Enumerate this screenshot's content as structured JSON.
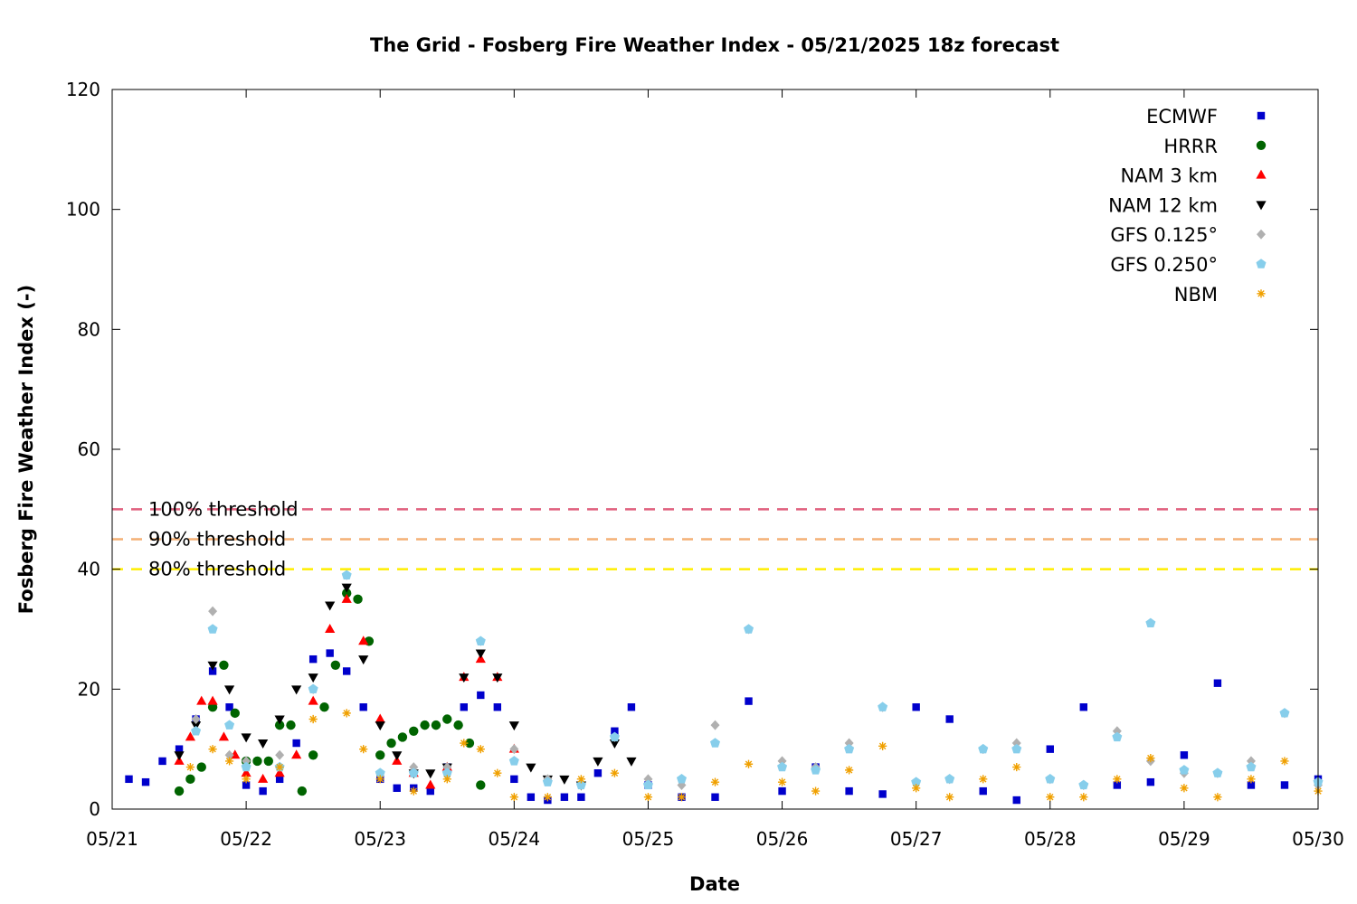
{
  "chart_data": {
    "type": "scatter",
    "title": "The Grid - Fosberg Fire Weather Index - 05/21/2025 18z forecast",
    "xlabel": "Date",
    "ylabel": "Fosberg Fire Weather Index (-)",
    "x_ticks": [
      "05/21",
      "05/22",
      "05/23",
      "05/24",
      "05/25",
      "05/26",
      "05/27",
      "05/28",
      "05/29",
      "05/30"
    ],
    "xlim": [
      "2025-05-21T00:00",
      "2025-05-30T00:00"
    ],
    "ylim": [
      0,
      120
    ],
    "y_ticks": [
      0,
      20,
      40,
      60,
      80,
      100,
      120
    ],
    "grid": false,
    "legend_position": "top-right",
    "thresholds": [
      {
        "label": "100% threshold",
        "value": 50,
        "color": "#e0607e"
      },
      {
        "label": "90% threshold",
        "value": 45,
        "color": "#f4b075"
      },
      {
        "label": "80% threshold",
        "value": 40,
        "color": "#ffee00"
      }
    ],
    "series": [
      {
        "name": "ECMWF",
        "marker": "square",
        "color": "#0000cc",
        "x": [
          "2025-05-21T03:00",
          "2025-05-21T06:00",
          "2025-05-21T09:00",
          "2025-05-21T12:00",
          "2025-05-21T15:00",
          "2025-05-21T18:00",
          "2025-05-21T21:00",
          "2025-05-22T00:00",
          "2025-05-22T03:00",
          "2025-05-22T06:00",
          "2025-05-22T09:00",
          "2025-05-22T12:00",
          "2025-05-22T15:00",
          "2025-05-22T18:00",
          "2025-05-22T21:00",
          "2025-05-23T00:00",
          "2025-05-23T03:00",
          "2025-05-23T06:00",
          "2025-05-23T09:00",
          "2025-05-23T12:00",
          "2025-05-23T15:00",
          "2025-05-23T18:00",
          "2025-05-23T21:00",
          "2025-05-24T00:00",
          "2025-05-24T03:00",
          "2025-05-24T06:00",
          "2025-05-24T09:00",
          "2025-05-24T12:00",
          "2025-05-24T15:00",
          "2025-05-24T18:00",
          "2025-05-24T21:00",
          "2025-05-25T00:00",
          "2025-05-25T06:00",
          "2025-05-25T12:00",
          "2025-05-25T18:00",
          "2025-05-26T00:00",
          "2025-05-26T06:00",
          "2025-05-26T12:00",
          "2025-05-26T18:00",
          "2025-05-27T00:00",
          "2025-05-27T06:00",
          "2025-05-27T12:00",
          "2025-05-27T18:00",
          "2025-05-28T00:00",
          "2025-05-28T06:00",
          "2025-05-28T12:00",
          "2025-05-28T18:00",
          "2025-05-29T00:00",
          "2025-05-29T06:00",
          "2025-05-29T12:00",
          "2025-05-29T18:00",
          "2025-05-30T00:00"
        ],
        "y": [
          5,
          4.5,
          8,
          10,
          15,
          23,
          17,
          4,
          3,
          5,
          11,
          25,
          26,
          23,
          17,
          5,
          3.5,
          3.5,
          3,
          7,
          17,
          19,
          17,
          5,
          2,
          1.5,
          2,
          2,
          6,
          13,
          17,
          4,
          2,
          2,
          18,
          3,
          7,
          3,
          2.5,
          17,
          15,
          3,
          1.5,
          10,
          17,
          4,
          4.5,
          9,
          21,
          4,
          4,
          5
        ]
      },
      {
        "name": "HRRR",
        "marker": "circle",
        "color": "#006400",
        "x": [
          "2025-05-21T12:00",
          "2025-05-21T14:00",
          "2025-05-21T16:00",
          "2025-05-21T18:00",
          "2025-05-21T20:00",
          "2025-05-21T22:00",
          "2025-05-22T00:00",
          "2025-05-22T02:00",
          "2025-05-22T04:00",
          "2025-05-22T06:00",
          "2025-05-22T08:00",
          "2025-05-22T10:00",
          "2025-05-22T12:00",
          "2025-05-22T14:00",
          "2025-05-22T16:00",
          "2025-05-22T18:00",
          "2025-05-22T20:00",
          "2025-05-22T22:00",
          "2025-05-23T00:00",
          "2025-05-23T02:00",
          "2025-05-23T04:00",
          "2025-05-23T06:00",
          "2025-05-23T08:00",
          "2025-05-23T10:00",
          "2025-05-23T12:00",
          "2025-05-23T14:00",
          "2025-05-23T16:00",
          "2025-05-23T18:00"
        ],
        "y": [
          3,
          5,
          7,
          17,
          24,
          16,
          8,
          8,
          8,
          14,
          14,
          3,
          9,
          17,
          24,
          36,
          35,
          28,
          9,
          11,
          12,
          13,
          14,
          14,
          15,
          14,
          11,
          4
        ]
      },
      {
        "name": "NAM 3 km",
        "marker": "triangle-up",
        "color": "#ff0000",
        "x": [
          "2025-05-21T12:00",
          "2025-05-21T14:00",
          "2025-05-21T16:00",
          "2025-05-21T18:00",
          "2025-05-21T20:00",
          "2025-05-21T22:00",
          "2025-05-22T00:00",
          "2025-05-22T03:00",
          "2025-05-22T06:00",
          "2025-05-22T09:00",
          "2025-05-22T12:00",
          "2025-05-22T15:00",
          "2025-05-22T18:00",
          "2025-05-22T21:00",
          "2025-05-23T00:00",
          "2025-05-23T03:00",
          "2025-05-23T06:00",
          "2025-05-23T09:00",
          "2025-05-23T12:00",
          "2025-05-23T15:00",
          "2025-05-23T18:00",
          "2025-05-23T21:00",
          "2025-05-24T00:00"
        ],
        "y": [
          8,
          12,
          18,
          18,
          12,
          9,
          6,
          5,
          6,
          9,
          18,
          30,
          35,
          28,
          15,
          8,
          6,
          4,
          7,
          22,
          25,
          22,
          10
        ]
      },
      {
        "name": "NAM 12 km",
        "marker": "triangle-down",
        "color": "#000000",
        "x": [
          "2025-05-21T12:00",
          "2025-05-21T15:00",
          "2025-05-21T18:00",
          "2025-05-21T21:00",
          "2025-05-22T00:00",
          "2025-05-22T03:00",
          "2025-05-22T06:00",
          "2025-05-22T09:00",
          "2025-05-22T12:00",
          "2025-05-22T15:00",
          "2025-05-22T18:00",
          "2025-05-22T21:00",
          "2025-05-23T00:00",
          "2025-05-23T03:00",
          "2025-05-23T06:00",
          "2025-05-23T09:00",
          "2025-05-23T12:00",
          "2025-05-23T15:00",
          "2025-05-23T18:00",
          "2025-05-23T21:00",
          "2025-05-24T00:00",
          "2025-05-24T03:00",
          "2025-05-24T06:00",
          "2025-05-24T09:00",
          "2025-05-24T12:00",
          "2025-05-24T15:00",
          "2025-05-24T18:00",
          "2025-05-24T21:00"
        ],
        "y": [
          9,
          14,
          24,
          20,
          12,
          11,
          15,
          20,
          22,
          34,
          37,
          25,
          14,
          9,
          6,
          6,
          7,
          22,
          26,
          22,
          14,
          7,
          5,
          5,
          4,
          8,
          11,
          8
        ]
      },
      {
        "name": "GFS 0.125°",
        "marker": "diamond",
        "color": "#b0b0b0",
        "x": [
          "2025-05-21T15:00",
          "2025-05-21T18:00",
          "2025-05-21T21:00",
          "2025-05-22T00:00",
          "2025-05-22T06:00",
          "2025-05-22T12:00",
          "2025-05-22T18:00",
          "2025-05-23T00:00",
          "2025-05-23T06:00",
          "2025-05-23T12:00",
          "2025-05-23T18:00",
          "2025-05-24T00:00",
          "2025-05-24T06:00",
          "2025-05-24T12:00",
          "2025-05-24T18:00",
          "2025-05-25T00:00",
          "2025-05-25T06:00",
          "2025-05-25T12:00",
          "2025-05-25T18:00",
          "2025-05-26T00:00",
          "2025-05-26T06:00",
          "2025-05-26T12:00",
          "2025-05-26T18:00",
          "2025-05-27T00:00",
          "2025-05-27T06:00",
          "2025-05-27T12:00",
          "2025-05-27T18:00",
          "2025-05-28T00:00",
          "2025-05-28T06:00",
          "2025-05-28T12:00",
          "2025-05-28T18:00",
          "2025-05-29T00:00",
          "2025-05-29T06:00",
          "2025-05-29T12:00",
          "2025-05-29T18:00",
          "2025-05-30T00:00"
        ],
        "y": [
          15,
          33,
          9,
          8,
          9,
          20,
          39,
          6,
          7,
          7,
          28,
          10,
          5,
          4,
          12,
          5,
          4,
          14,
          30,
          8,
          7,
          11,
          17,
          4.5,
          5,
          10,
          11,
          5,
          4,
          13,
          8,
          6,
          6,
          8,
          16,
          4
        ]
      },
      {
        "name": "GFS 0.250°",
        "marker": "pentagon",
        "color": "#87ceeb",
        "x": [
          "2025-05-21T15:00",
          "2025-05-21T18:00",
          "2025-05-21T21:00",
          "2025-05-22T00:00",
          "2025-05-22T06:00",
          "2025-05-22T12:00",
          "2025-05-22T18:00",
          "2025-05-23T00:00",
          "2025-05-23T06:00",
          "2025-05-23T12:00",
          "2025-05-23T18:00",
          "2025-05-24T00:00",
          "2025-05-24T06:00",
          "2025-05-24T12:00",
          "2025-05-24T18:00",
          "2025-05-25T00:00",
          "2025-05-25T06:00",
          "2025-05-25T12:00",
          "2025-05-25T18:00",
          "2025-05-26T00:00",
          "2025-05-26T06:00",
          "2025-05-26T12:00",
          "2025-05-26T18:00",
          "2025-05-27T00:00",
          "2025-05-27T06:00",
          "2025-05-27T12:00",
          "2025-05-27T18:00",
          "2025-05-28T00:00",
          "2025-05-28T06:00",
          "2025-05-28T12:00",
          "2025-05-28T18:00",
          "2025-05-29T00:00",
          "2025-05-29T06:00",
          "2025-05-29T12:00",
          "2025-05-29T18:00",
          "2025-05-30T00:00"
        ],
        "y": [
          13,
          30,
          14,
          7,
          7,
          20,
          39,
          6,
          6,
          6,
          28,
          8,
          4.5,
          4,
          12,
          4,
          5,
          11,
          30,
          7,
          6.5,
          10,
          17,
          4.5,
          5,
          10,
          10,
          5,
          4,
          12,
          31,
          6.5,
          6,
          7,
          16,
          4.5
        ]
      },
      {
        "name": "NBM",
        "marker": "asterisk",
        "color": "#f0a000",
        "x": [
          "2025-05-21T14:00",
          "2025-05-21T18:00",
          "2025-05-21T21:00",
          "2025-05-22T00:00",
          "2025-05-22T06:00",
          "2025-05-22T12:00",
          "2025-05-22T18:00",
          "2025-05-22T21:00",
          "2025-05-23T00:00",
          "2025-05-23T06:00",
          "2025-05-23T12:00",
          "2025-05-23T15:00",
          "2025-05-23T18:00",
          "2025-05-23T21:00",
          "2025-05-24T00:00",
          "2025-05-24T06:00",
          "2025-05-24T12:00",
          "2025-05-24T18:00",
          "2025-05-25T00:00",
          "2025-05-25T06:00",
          "2025-05-25T12:00",
          "2025-05-25T18:00",
          "2025-05-26T00:00",
          "2025-05-26T06:00",
          "2025-05-26T12:00",
          "2025-05-26T18:00",
          "2025-05-27T00:00",
          "2025-05-27T06:00",
          "2025-05-27T12:00",
          "2025-05-27T18:00",
          "2025-05-28T00:00",
          "2025-05-28T06:00",
          "2025-05-28T12:00",
          "2025-05-28T18:00",
          "2025-05-29T00:00",
          "2025-05-29T06:00",
          "2025-05-29T12:00",
          "2025-05-29T18:00",
          "2025-05-30T00:00"
        ],
        "y": [
          7,
          10,
          8,
          5,
          7,
          15,
          16,
          10,
          5,
          3,
          5,
          11,
          10,
          6,
          2,
          2,
          5,
          6,
          2,
          2,
          4.5,
          7.5,
          4.5,
          3,
          6.5,
          10.5,
          3.5,
          2,
          5,
          7,
          2,
          2,
          5,
          8.5,
          3.5,
          2,
          5,
          8,
          3
        ]
      }
    ]
  }
}
